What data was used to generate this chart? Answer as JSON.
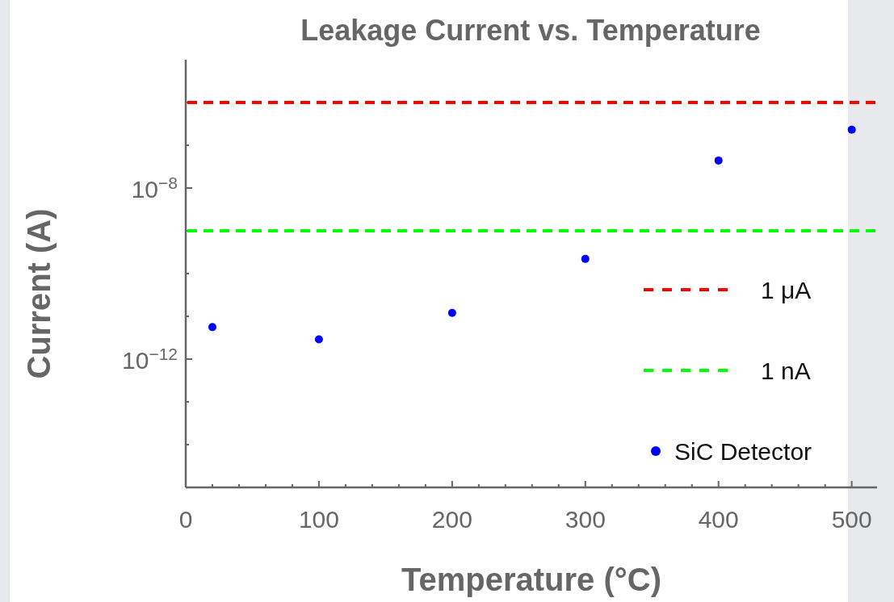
{
  "chart_data": {
    "type": "scatter",
    "title": "Leakage Current vs. Temperature",
    "xlabel": "Temperature (°C)",
    "ylabel": "Current (A)",
    "x": [
      20,
      100,
      200,
      300,
      400,
      500
    ],
    "series": [
      {
        "name": "SiC Detector",
        "color": "#0000ff",
        "values": [
          5.6e-12,
          2.9e-12,
          1.2e-11,
          2.2e-10,
          4.4e-08,
          2.3e-07
        ]
      }
    ],
    "log": "y",
    "marker": "circle",
    "grid": false,
    "legend": "bottom right",
    "xlim": [
      0,
      519
    ],
    "ylim": [
      1e-15,
      1e-05
    ],
    "xticks": [
      0,
      {
        "value": 20,
        "label": null
      },
      {
        "value": 40,
        "label": null
      },
      {
        "value": 60,
        "label": null
      },
      {
        "value": 80,
        "label": null
      },
      100,
      {
        "value": 120,
        "label": null
      },
      {
        "value": 140,
        "label": null
      },
      {
        "value": 160,
        "label": null
      },
      {
        "value": 180,
        "label": null
      },
      200,
      {
        "value": 220,
        "label": null
      },
      {
        "value": 240,
        "label": null
      },
      {
        "value": 260,
        "label": null
      },
      {
        "value": 280,
        "label": null
      },
      300,
      {
        "value": 320,
        "label": null
      },
      {
        "value": 340,
        "label": null
      },
      {
        "value": 360,
        "label": null
      },
      {
        "value": 380,
        "label": null
      },
      400,
      {
        "value": 420,
        "label": null
      },
      {
        "value": 440,
        "label": null
      },
      {
        "value": 460,
        "label": null
      },
      {
        "value": 480,
        "label": null
      },
      500
    ],
    "yticks": [
      {
        "value": 1e-14,
        "label": null
      },
      {
        "value": 1e-13,
        "label": null
      },
      {
        "value": 1e-12,
        "label": "10$^{−12}$"
      },
      {
        "value": 1e-11,
        "label": null
      },
      {
        "value": 1e-10,
        "label": null
      },
      {
        "value": 1e-09,
        "label": null
      },
      {
        "value": 1e-08,
        "label": "10$^{−8}$"
      },
      {
        "value": 1e-07,
        "label": null
      },
      {
        "value": 1e-06,
        "label": null
      }
    ],
    "ref_lines": [
      {
        "axis": "y",
        "value": 1e-06,
        "label": "1 μA",
        "color": "#ff0000",
        "line_style": "dashed"
      },
      {
        "axis": "y",
        "value": 1e-09,
        "label": "1 nA",
        "color": "#00ff00",
        "line_style": "dashed"
      }
    ]
  }
}
